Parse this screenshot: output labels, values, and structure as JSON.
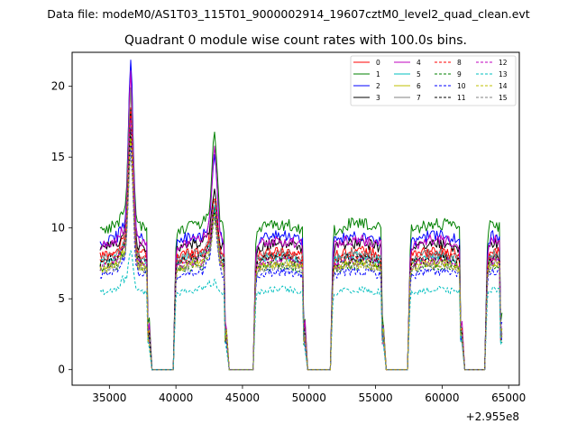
{
  "suptitle": "Data file: modeM0/AS1T03_115T01_9000002914_19607cztM0_level2_quad_clean.evt",
  "chart_data": {
    "type": "line",
    "title": "Quadrant 0 module wise count rates with 100.0s bins.",
    "xlabel": "",
    "ylabel": "",
    "x_offset_label": "+2.955e8",
    "xlim": [
      32200,
      65800
    ],
    "ylim": [
      -1.1,
      22.4
    ],
    "xticks": [
      35000,
      40000,
      45000,
      50000,
      55000,
      60000,
      65000
    ],
    "xtick_labels": [
      "35000",
      "40000",
      "45000",
      "50000",
      "55000",
      "60000",
      "65000"
    ],
    "yticks": [
      0,
      5,
      10,
      15,
      20
    ],
    "ytick_labels": [
      "0",
      "5",
      "10",
      "15",
      "20"
    ],
    "grid": false,
    "legend_position": "top-right",
    "legend_columns": 4,
    "bin_width": 100,
    "data_segments": [
      {
        "start": 34300,
        "end": 38000
      },
      {
        "start": 40000,
        "end": 43800
      },
      {
        "start": 46000,
        "end": 49700
      },
      {
        "start": 51800,
        "end": 55600
      },
      {
        "start": 57600,
        "end": 61500
      },
      {
        "start": 63400,
        "end": 64500
      }
    ],
    "zero_gaps": [
      {
        "start": 38200,
        "end": 39800
      },
      {
        "start": 44000,
        "end": 45800
      },
      {
        "start": 49900,
        "end": 51600
      },
      {
        "start": 55800,
        "end": 57400
      },
      {
        "start": 61700,
        "end": 63200
      }
    ],
    "flares": [
      {
        "center": 36600,
        "width": 250
      },
      {
        "center": 42900,
        "width": 280
      }
    ],
    "series": [
      {
        "name": "0",
        "color": "#ff0000",
        "dash": "solid",
        "level": 8.0,
        "flare1": 19.2,
        "flare2": 12.0
      },
      {
        "name": "1",
        "color": "#008000",
        "dash": "solid",
        "level": 9.8,
        "flare1": 20.7,
        "flare2": 16.2
      },
      {
        "name": "2",
        "color": "#0000ff",
        "dash": "solid",
        "level": 9.0,
        "flare1": 21.2,
        "flare2": 15.0
      },
      {
        "name": "3",
        "color": "#000000",
        "dash": "solid",
        "level": 8.5,
        "flare1": 18.0,
        "flare2": 12.5
      },
      {
        "name": "4",
        "color": "#bf00bf",
        "dash": "solid",
        "level": 8.7,
        "flare1": 20.5,
        "flare2": 15.3
      },
      {
        "name": "5",
        "color": "#00bfbf",
        "dash": "solid",
        "level": 7.6,
        "flare1": 16.2,
        "flare2": 11.0
      },
      {
        "name": "6",
        "color": "#bfbf00",
        "dash": "solid",
        "level": 7.2,
        "flare1": 16.0,
        "flare2": 11.0
      },
      {
        "name": "7",
        "color": "#808080",
        "dash": "solid",
        "level": 7.8,
        "flare1": 19.3,
        "flare2": 11.5
      },
      {
        "name": "8",
        "color": "#ff0000",
        "dash": "dashed",
        "level": 7.7,
        "flare1": 18.0,
        "flare2": 12.0
      },
      {
        "name": "9",
        "color": "#008000",
        "dash": "dashed",
        "level": 7.0,
        "flare1": 17.0,
        "flare2": 11.0
      },
      {
        "name": "10",
        "color": "#0000ff",
        "dash": "dashed",
        "level": 6.6,
        "flare1": 15.5,
        "flare2": 10.5
      },
      {
        "name": "11",
        "color": "#000000",
        "dash": "dashed",
        "level": 7.5,
        "flare1": 16.5,
        "flare2": 11.0
      },
      {
        "name": "12",
        "color": "#bf00bf",
        "dash": "dashed",
        "level": 7.3,
        "flare1": 17.5,
        "flare2": 11.5
      },
      {
        "name": "13",
        "color": "#00bfbf",
        "dash": "dashed",
        "level": 5.4,
        "flare1": 8.3,
        "flare2": 6.0
      },
      {
        "name": "14",
        "color": "#bfbf00",
        "dash": "dashed",
        "level": 7.1,
        "flare1": 16.0,
        "flare2": 10.5
      },
      {
        "name": "15",
        "color": "#808080",
        "dash": "dashed",
        "level": 7.0,
        "flare1": 15.0,
        "flare2": 10.5
      }
    ]
  }
}
